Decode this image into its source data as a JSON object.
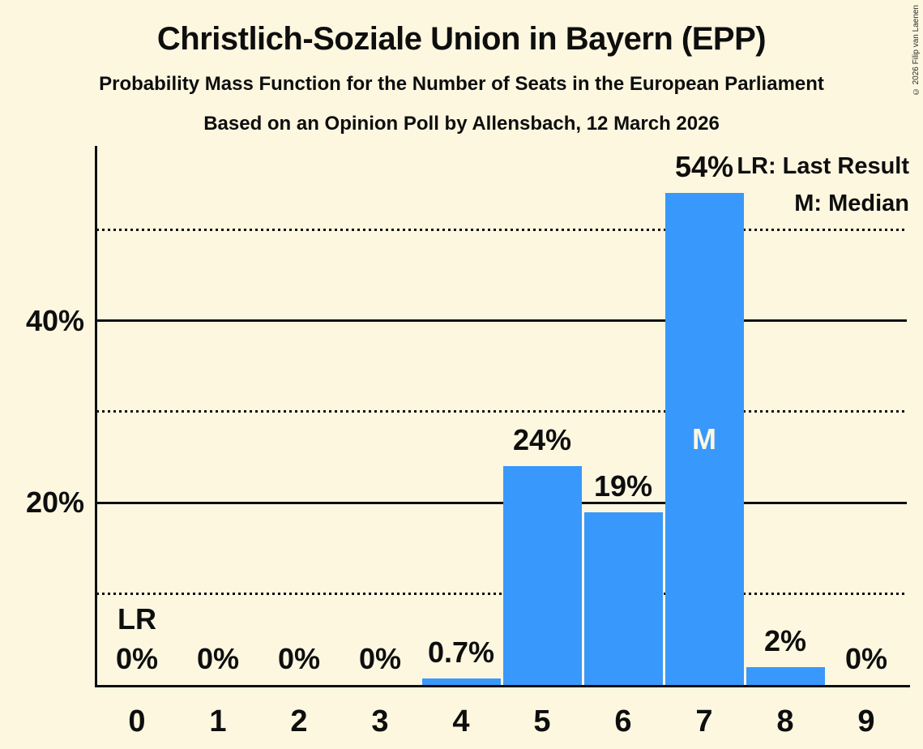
{
  "copyright": "© 2026 Filip van Laenen",
  "legend": {
    "lr": "LR: Last Result",
    "m": "M: Median"
  },
  "colors": {
    "background": "#FDF7E0",
    "bar": "#3998FC",
    "text": "#0E0E0E",
    "bar_inner_label": "#FDF7E0"
  },
  "chart_data": {
    "type": "bar",
    "title": "Christlich-Soziale Union in Bayern (EPP)",
    "subtitle": "Probability Mass Function for the Number of Seats in the European Parliament",
    "poll_line": "Based on an Opinion Poll by Allensbach, 12 March 2026",
    "categories": [
      "0",
      "1",
      "2",
      "3",
      "4",
      "5",
      "6",
      "7",
      "8",
      "9"
    ],
    "values": [
      0,
      0,
      0,
      0,
      0.7,
      24,
      19,
      54,
      2,
      0
    ],
    "bar_labels": [
      "0%",
      "0%",
      "0%",
      "0%",
      "0.7%",
      "24%",
      "19%",
      "54%",
      "2%",
      "0%"
    ],
    "xlabel": "",
    "ylabel": "",
    "ylim": [
      0,
      59
    ],
    "yticks": [
      {
        "label": "20%",
        "value": 20
      },
      {
        "label": "40%",
        "value": 40
      }
    ],
    "gridlines_solid_pct": [
      20,
      40
    ],
    "gridlines_dotted_pct": [
      10,
      30,
      50
    ],
    "legend_position": "top-right",
    "grid": true,
    "annotations": [
      {
        "text": "LR",
        "meaning": "Last Result",
        "category": "0",
        "position": "above"
      },
      {
        "text": "M",
        "meaning": "Median",
        "category": "7",
        "position": "inside"
      }
    ]
  }
}
